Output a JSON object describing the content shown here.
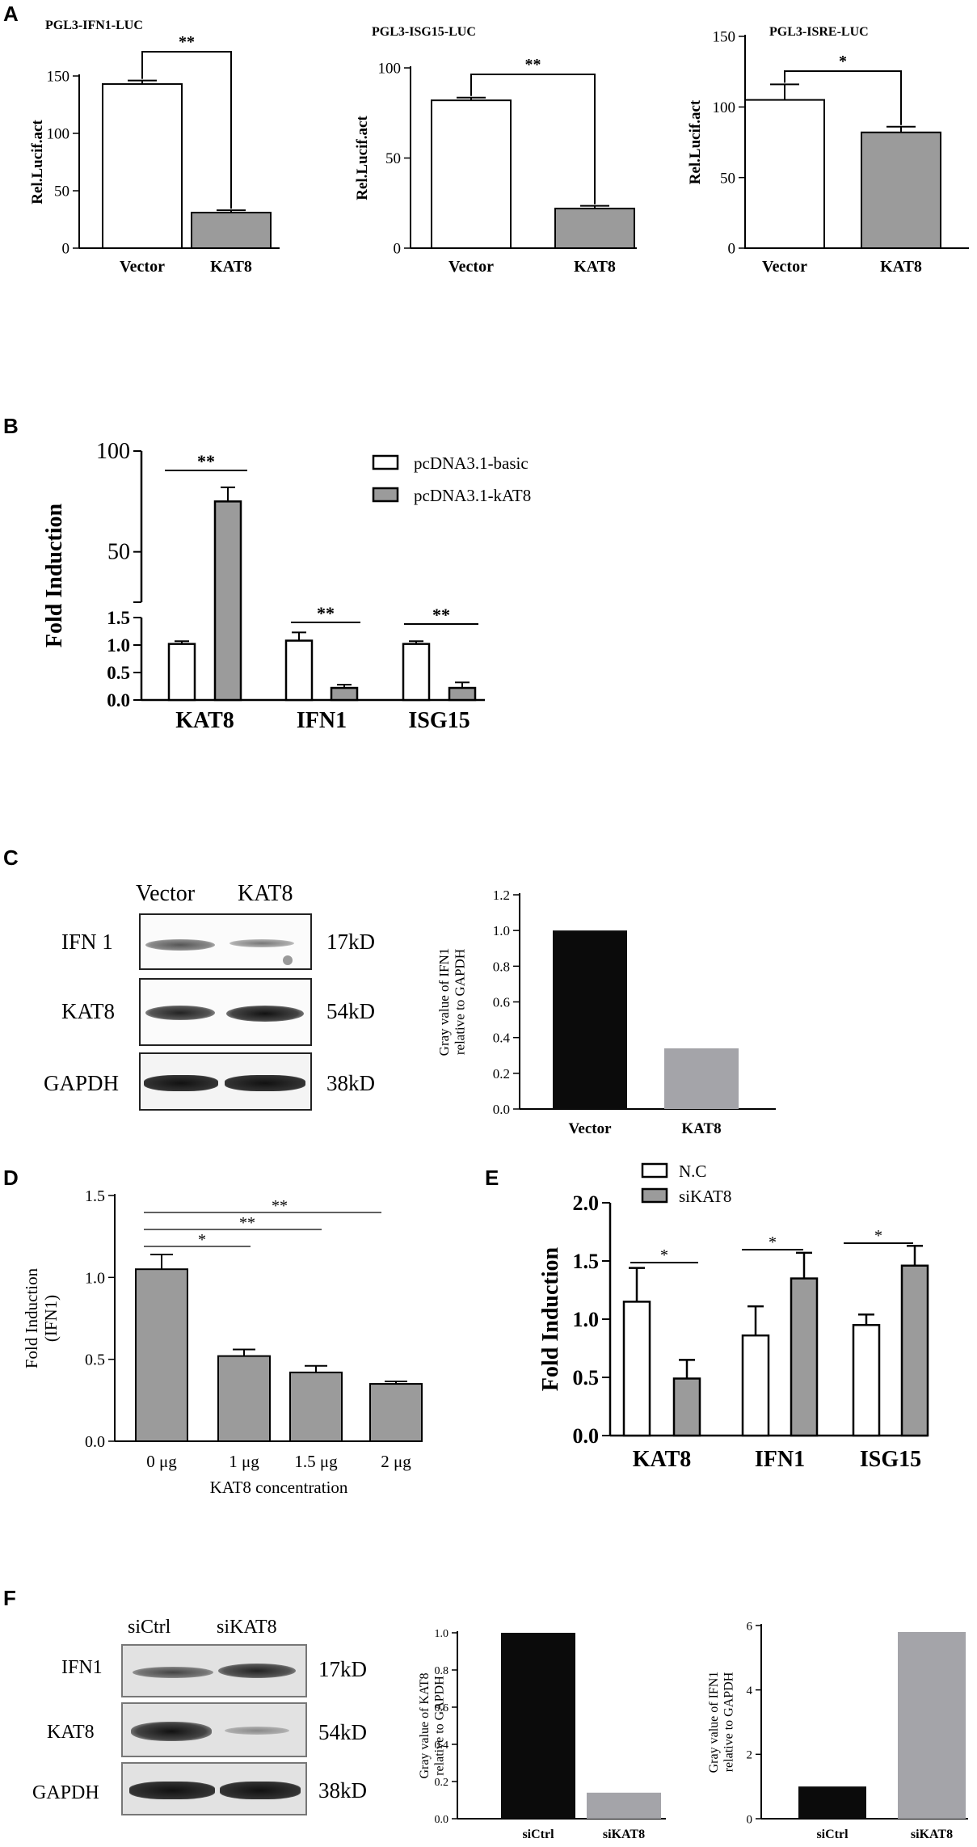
{
  "panels": {
    "A": "A",
    "B": "B",
    "C": "C",
    "D": "D",
    "E": "E",
    "F": "F"
  },
  "colors": {
    "white": "#ffffff",
    "gray": "#9b9b9b",
    "black": "#0b0b0b",
    "lightgray": "#a4a4a9"
  },
  "chart_data": [
    {
      "id": "A1",
      "type": "bar",
      "title": "PGL3-IFN1-LUC",
      "ylabel": "Rel.Lucif.act",
      "categories": [
        "Vector",
        "KAT8"
      ],
      "values": [
        143,
        31
      ],
      "errors": [
        3,
        2
      ],
      "ylim": [
        0,
        150
      ],
      "yticks": [
        0,
        50,
        100,
        150
      ],
      "significance": [
        {
          "label": "**",
          "between": [
            "Vector",
            "KAT8"
          ]
        }
      ]
    },
    {
      "id": "A2",
      "type": "bar",
      "title": "PGL3-ISG15-LUC",
      "ylabel": "Rel.Lucif.act",
      "categories": [
        "Vector",
        "KAT8"
      ],
      "values": [
        82,
        22
      ],
      "errors": [
        1.5,
        1.5
      ],
      "ylim": [
        0,
        100
      ],
      "yticks": [
        0,
        50,
        100
      ],
      "significance": [
        {
          "label": "**",
          "between": [
            "Vector",
            "KAT8"
          ]
        }
      ]
    },
    {
      "id": "A3",
      "type": "bar",
      "title": "PGL3-ISRE-LUC",
      "ylabel": "Rel.Lucif.act",
      "categories": [
        "Vector",
        "KAT8"
      ],
      "values": [
        105,
        82
      ],
      "errors": [
        11,
        4
      ],
      "ylim": [
        0,
        150
      ],
      "yticks": [
        0,
        50,
        100,
        150
      ],
      "significance": [
        {
          "label": "*",
          "between": [
            "Vector",
            "KAT8"
          ]
        }
      ]
    },
    {
      "id": "B",
      "type": "bar",
      "ylabel": "Fold Induction",
      "categories": [
        "KAT8",
        "IFN1",
        "ISG15"
      ],
      "series": [
        {
          "name": "pcDNA3.1-basic",
          "values": [
            1.02,
            1.08,
            1.02
          ],
          "errors": [
            0.05,
            0.15,
            0.05
          ]
        },
        {
          "name": "pcDNA3.1-kAT8",
          "values": [
            75,
            0.22,
            0.22
          ],
          "errors": [
            7,
            0.06,
            0.1
          ]
        }
      ],
      "yticks_lower": [
        "0.0",
        "0.5",
        "1.0",
        "1.5"
      ],
      "yticks_upper": [
        "50",
        "100"
      ],
      "axis_break": true,
      "legend": "top-right",
      "significance": [
        "**",
        "**",
        "**"
      ]
    },
    {
      "id": "C",
      "type": "bar",
      "ylabel": "Gray value of IFN1 relative to GAPDH",
      "categories": [
        "Vector",
        "KAT8"
      ],
      "values": [
        1.0,
        0.34
      ],
      "ylim": [
        0,
        1.2
      ],
      "yticks": [
        "0.0",
        "0.2",
        "0.4",
        "0.6",
        "0.8",
        "1.0",
        "1.2"
      ]
    },
    {
      "id": "D",
      "type": "bar",
      "ylabel": "Fold Induction (IFN1)",
      "xlabel": "KAT8 concentration",
      "categories": [
        "0 μg",
        "1 μg",
        "1.5 μg",
        "2 μg"
      ],
      "values": [
        1.05,
        0.52,
        0.42,
        0.35
      ],
      "errors": [
        0.09,
        0.04,
        0.04,
        0.015
      ],
      "ylim": [
        0,
        1.5
      ],
      "yticks": [
        "0.0",
        "0.5",
        "1.0",
        "1.5"
      ],
      "significance": [
        "*",
        "**",
        "**"
      ]
    },
    {
      "id": "E",
      "type": "bar",
      "ylabel": "Fold Induction",
      "categories": [
        "KAT8",
        "IFN1",
        "ISG15"
      ],
      "series": [
        {
          "name": "N.C",
          "values": [
            1.15,
            0.86,
            0.95
          ],
          "errors": [
            0.29,
            0.25,
            0.09
          ]
        },
        {
          "name": "siKAT8",
          "values": [
            0.49,
            1.35,
            1.46
          ],
          "errors": [
            0.16,
            0.22,
            0.17
          ]
        }
      ],
      "ylim": [
        0,
        2.0
      ],
      "yticks": [
        "0.0",
        "0.5",
        "1.0",
        "1.5",
        "2.0"
      ],
      "legend": "top-left",
      "significance": [
        "*",
        "*",
        "*"
      ]
    },
    {
      "id": "F1",
      "type": "bar",
      "ylabel": "Gray value of KAT8 relative to GAPDH",
      "categories": [
        "siCtrl",
        "siKAT8"
      ],
      "values": [
        1.0,
        0.14
      ],
      "ylim": [
        0,
        1.0
      ],
      "yticks": [
        "0.0",
        "0.2",
        "0.4",
        "0.6",
        "0.8",
        "1.0"
      ]
    },
    {
      "id": "F2",
      "type": "bar",
      "ylabel": "Gray value of IFN1 relative to GAPDH",
      "categories": [
        "siCtrl",
        "siKAT8"
      ],
      "values": [
        1.0,
        5.8
      ],
      "ylim": [
        0,
        6
      ],
      "yticks": [
        "0",
        "2",
        "4",
        "6"
      ]
    }
  ],
  "blots": {
    "C": {
      "lanes": [
        "Vector",
        "KAT8"
      ],
      "rows": [
        {
          "label": "IFN 1",
          "size": "17kD"
        },
        {
          "label": "KAT8",
          "size": "54kD"
        },
        {
          "label": "GAPDH",
          "size": "38kD"
        }
      ]
    },
    "F": {
      "lanes": [
        "siCtrl",
        "siKAT8"
      ],
      "rows": [
        {
          "label": "IFN1",
          "size": "17kD"
        },
        {
          "label": "KAT8",
          "size": "54kD"
        },
        {
          "label": "GAPDH",
          "size": "38kD"
        }
      ]
    }
  }
}
